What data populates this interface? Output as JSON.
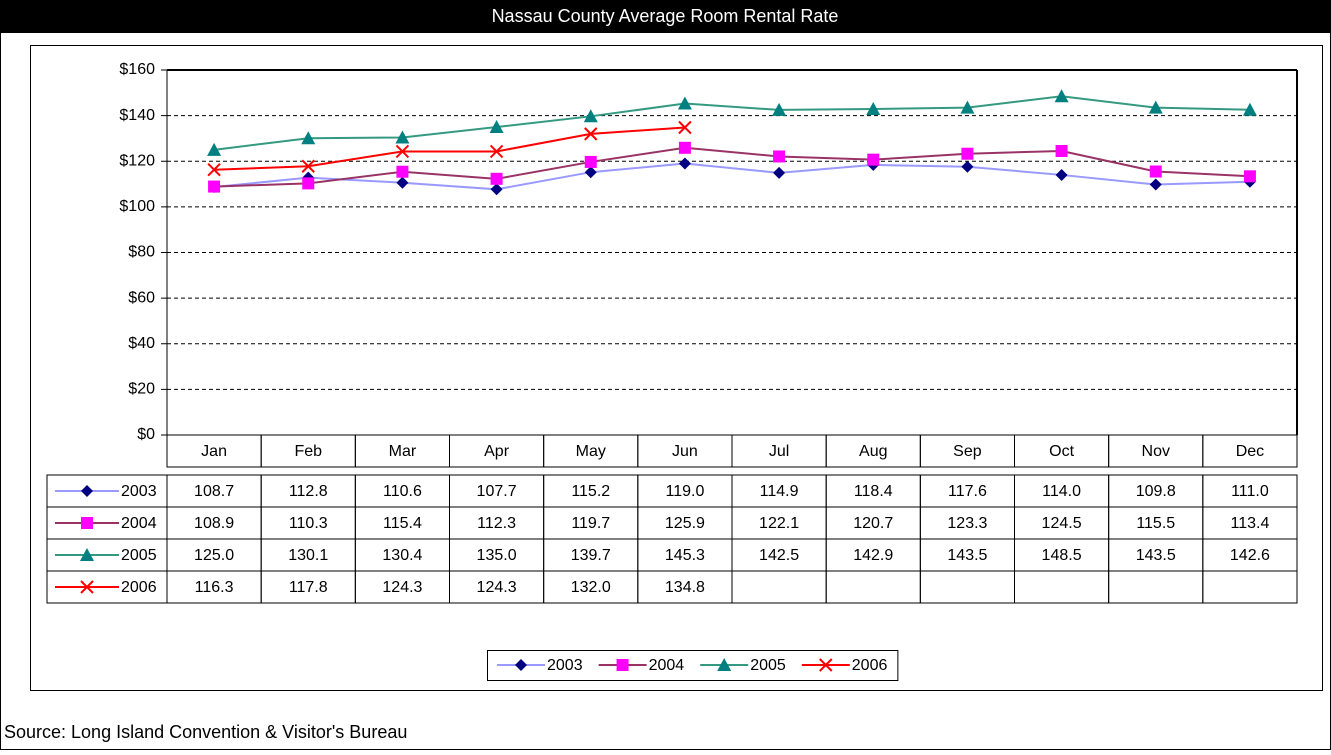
{
  "chart_data": {
    "type": "line",
    "title": "Nassau County Average Room Rental Rate",
    "source": "Source: Long Island Convention & Visitor's Bureau",
    "categories": [
      "Jan",
      "Feb",
      "Mar",
      "Apr",
      "May",
      "Jun",
      "Jul",
      "Aug",
      "Sep",
      "Oct",
      "Nov",
      "Dec"
    ],
    "ylim": [
      0,
      160
    ],
    "yticks": [
      {
        "value": 0,
        "label": "$0"
      },
      {
        "value": 20,
        "label": "$20"
      },
      {
        "value": 40,
        "label": "$40"
      },
      {
        "value": 60,
        "label": "$60"
      },
      {
        "value": 80,
        "label": "$80"
      },
      {
        "value": 100,
        "label": "$100"
      },
      {
        "value": 120,
        "label": "$120"
      },
      {
        "value": 140,
        "label": "$140"
      },
      {
        "value": 160,
        "label": "$160"
      }
    ],
    "grid": true,
    "legend": "bottom",
    "series": [
      {
        "name": "2003",
        "color": "#9999ff",
        "marker": "diamond",
        "marker_color": "#000080",
        "values": [
          108.7,
          112.8,
          110.6,
          107.7,
          115.2,
          119.0,
          114.9,
          118.4,
          117.6,
          114.0,
          109.8,
          111.0
        ],
        "value_labels": [
          "108.7",
          "112.8",
          "110.6",
          "107.7",
          "115.2",
          "119.0",
          "114.9",
          "118.4",
          "117.6",
          "114.0",
          "109.8",
          "111.0"
        ]
      },
      {
        "name": "2004",
        "color": "#993366",
        "marker": "square",
        "marker_color": "#ff00ff",
        "values": [
          108.9,
          110.3,
          115.4,
          112.3,
          119.7,
          125.9,
          122.1,
          120.7,
          123.3,
          124.5,
          115.5,
          113.4
        ],
        "value_labels": [
          "108.9",
          "110.3",
          "115.4",
          "112.3",
          "119.7",
          "125.9",
          "122.1",
          "120.7",
          "123.3",
          "124.5",
          "115.5",
          "113.4"
        ]
      },
      {
        "name": "2005",
        "color": "#339980",
        "marker": "triangle",
        "marker_color": "#008080",
        "values": [
          125.0,
          130.1,
          130.4,
          135.0,
          139.7,
          145.3,
          142.5,
          142.9,
          143.5,
          148.5,
          143.5,
          142.6
        ],
        "value_labels": [
          "125.0",
          "130.1",
          "130.4",
          "135.0",
          "139.7",
          "145.3",
          "142.5",
          "142.9",
          "143.5",
          "148.5",
          "143.5",
          "142.6"
        ]
      },
      {
        "name": "2006",
        "color": "#ff0000",
        "marker": "x",
        "marker_color": "#ff0000",
        "values": [
          116.3,
          117.8,
          124.3,
          124.3,
          132.0,
          134.8,
          null,
          null,
          null,
          null,
          null,
          null
        ],
        "value_labels": [
          "116.3",
          "117.8",
          "124.3",
          "124.3",
          "132.0",
          "134.8",
          null,
          null,
          null,
          null,
          null,
          null
        ]
      }
    ]
  }
}
